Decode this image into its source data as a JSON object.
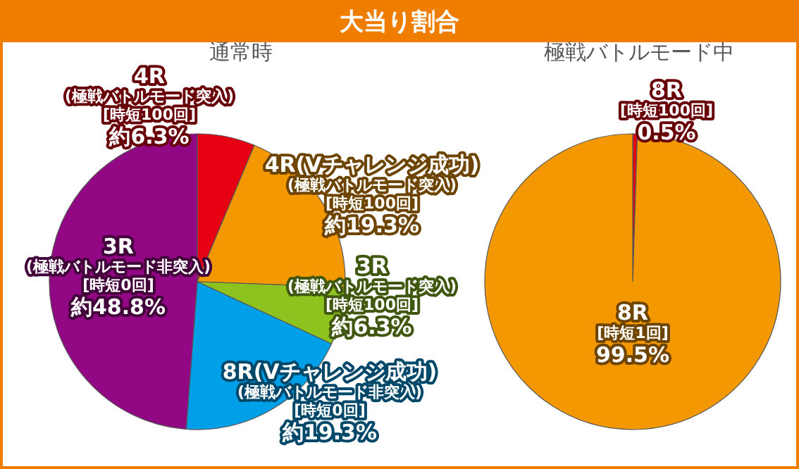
{
  "chart_data": [
    {
      "type": "pie",
      "title": "大当り割合",
      "subtitle": "通常時",
      "categories": [
        "4R\n(極戦バトルモード突入)\n[時短100回]",
        "4R(Vチャレンジ成功)\n(極戦バトルモード突入)\n[時短100回]",
        "3R\n(極戦バトルモード突入)\n[時短100回]",
        "8R(Vチャレンジ成功)\n(極戦バトルモード非突入)\n[時短0回]",
        "3R\n(極戦バトルモード非突入)\n[時短0回]"
      ],
      "values": [
        6.3,
        19.3,
        6.3,
        19.3,
        48.8
      ],
      "value_labels": [
        "約6.3%",
        "約19.3%",
        "約6.3%",
        "約19.3%",
        "約48.8%"
      ],
      "colors": [
        "#e60012",
        "#f39800",
        "#8dc21f",
        "#00a0e9",
        "#920783"
      ]
    },
    {
      "type": "pie",
      "subtitle": "極戦バトルモード中",
      "categories": [
        "8R\n[時短100回]",
        "8R\n[時短1回]"
      ],
      "values": [
        0.5,
        99.5
      ],
      "value_labels": [
        "0.5%",
        "99.5%"
      ],
      "colors": [
        "#e60012",
        "#f39800"
      ]
    }
  ]
}
